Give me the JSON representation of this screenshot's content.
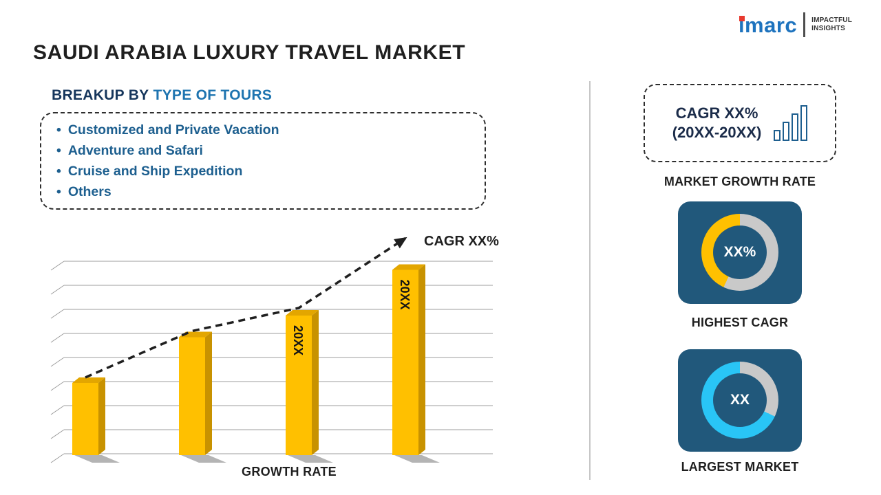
{
  "colors": {
    "accent_yellow": "#FFC000",
    "accent_cyan": "#29C5F6",
    "ring_gray": "#C9C9C9",
    "card_bg": "#21587B",
    "brand_blue": "#1E73BE",
    "brand_red": "#E8392E",
    "heading_navy": "#16365C",
    "heading_blue": "#1E74B0",
    "list_blue": "#1D5F8F",
    "text_dark": "#1F1F1F"
  },
  "header": {
    "title": "SAUDI ARABIA LUXURY TRAVEL MARKET",
    "logo_brand": "imarc",
    "logo_tagline1": "IMPACTFUL",
    "logo_tagline2": "INSIGHTS"
  },
  "breakup": {
    "heading_prefix": "BREAKUP BY",
    "heading_accent": "TYPE OF TOURS",
    "bullet": "•",
    "items": [
      "Customized and Private Vacation",
      "Adventure and Safari",
      "Cruise and Ship Expedition",
      "Others"
    ]
  },
  "chart_data": {
    "type": "bar",
    "categories": [
      "",
      "",
      "20XX",
      "20XX"
    ],
    "values": [
      30,
      49,
      58,
      77
    ],
    "ylim": [
      0,
      80
    ],
    "gridline_step": 10,
    "grid": true,
    "bar_color": "#FFC000",
    "trend": "dashed-arrow-rising",
    "trend_label": "CAGR XX%",
    "xlabel": "GROWTH RATE",
    "ylabel": ""
  },
  "sidebar": {
    "cagr_box": {
      "line1": "CAGR XX%",
      "line2": "(20XX-20XX)"
    },
    "market_growth_label": "MARKET GROWTH RATE",
    "highest_cagr": {
      "value": "XX%",
      "label": "HIGHEST CAGR",
      "ring_accent": "#FFC000"
    },
    "largest_market": {
      "value": "XX",
      "label": "LARGEST MARKET",
      "ring_accent": "#29C5F6"
    }
  }
}
